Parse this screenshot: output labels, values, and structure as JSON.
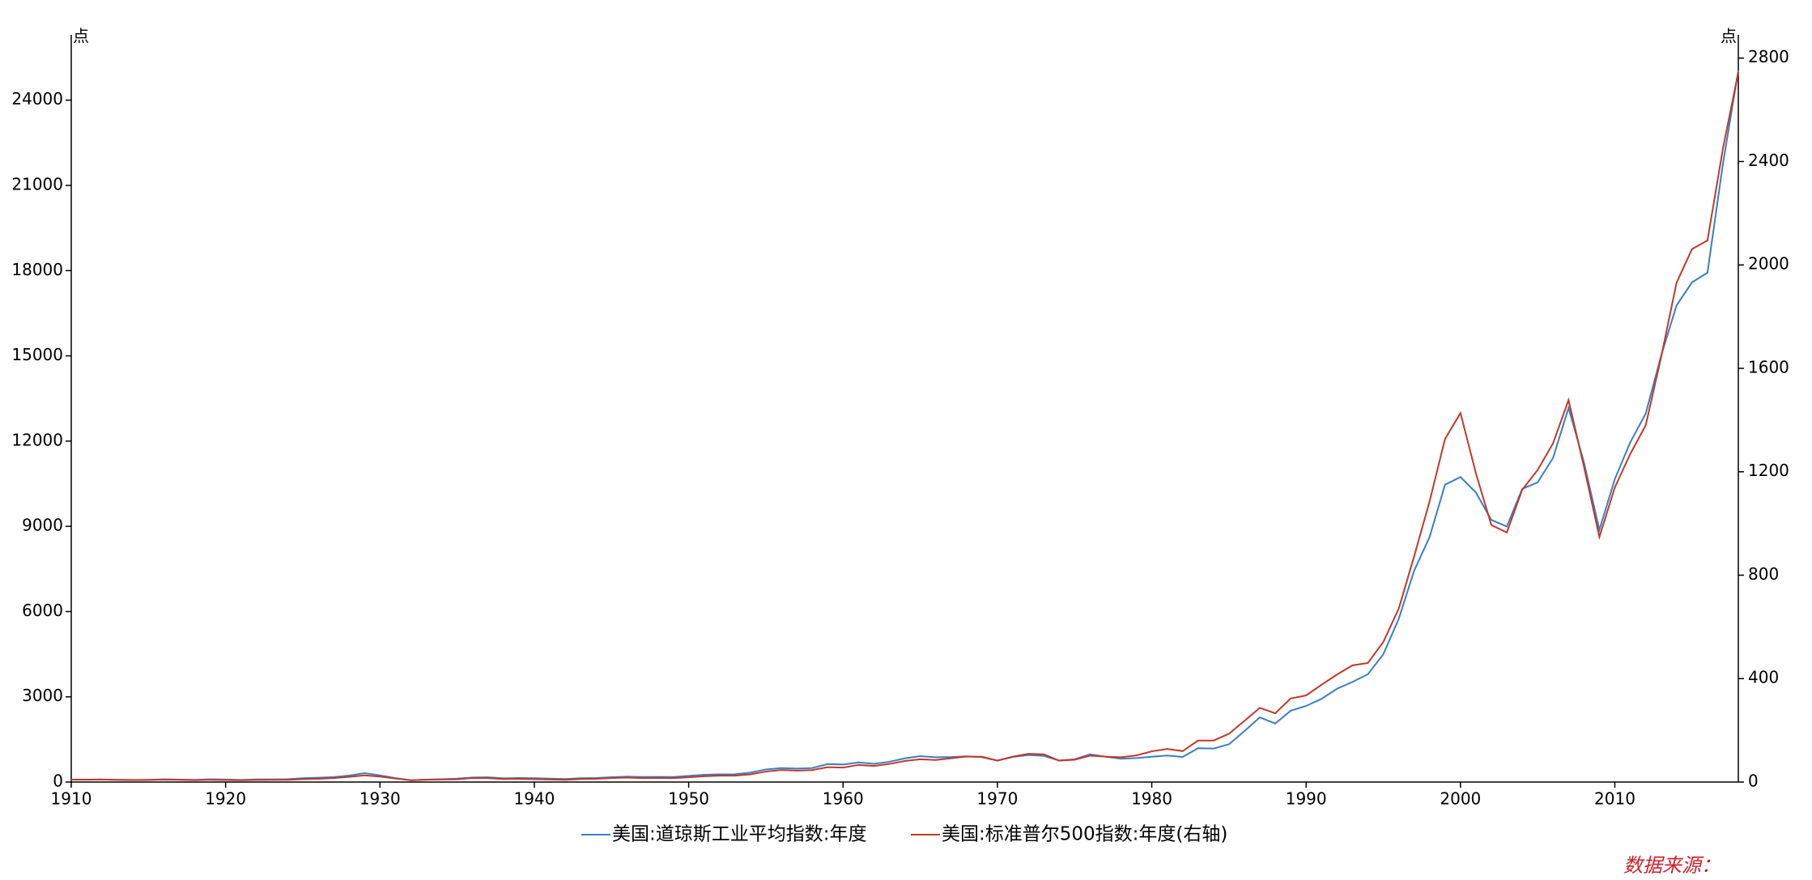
{
  "chart_data": {
    "type": "line",
    "y_unit": "点",
    "y2_unit": "点",
    "x": [
      1910,
      1911,
      1912,
      1913,
      1914,
      1915,
      1916,
      1917,
      1918,
      1919,
      1920,
      1921,
      1922,
      1923,
      1924,
      1925,
      1926,
      1927,
      1928,
      1929,
      1930,
      1931,
      1932,
      1933,
      1934,
      1935,
      1936,
      1937,
      1938,
      1939,
      1940,
      1941,
      1942,
      1943,
      1944,
      1945,
      1946,
      1947,
      1948,
      1949,
      1950,
      1951,
      1952,
      1953,
      1954,
      1955,
      1956,
      1957,
      1958,
      1959,
      1960,
      1961,
      1962,
      1963,
      1964,
      1965,
      1966,
      1967,
      1968,
      1969,
      1970,
      1971,
      1972,
      1973,
      1974,
      1975,
      1976,
      1977,
      1978,
      1979,
      1980,
      1981,
      1982,
      1983,
      1984,
      1985,
      1986,
      1987,
      1988,
      1989,
      1990,
      1991,
      1992,
      1993,
      1994,
      1995,
      1996,
      1997,
      1998,
      1999,
      2000,
      2001,
      2002,
      2003,
      2004,
      2005,
      2006,
      2007,
      2008,
      2009,
      2010,
      2011,
      2012,
      2013,
      2014,
      2015,
      2016,
      2017,
      2018
    ],
    "series": [
      {
        "name": "美国:道琼斯工业平均指数:年度",
        "color": "#3a7fc1",
        "values": [
          85,
          83,
          88,
          80,
          76,
          80,
          95,
          85,
          80,
          97,
          88,
          74,
          92,
          94,
          99,
          134,
          153,
          176,
          227,
          312,
          237,
          139,
          64,
          84,
          98,
          120,
          161,
          166,
          133,
          142,
          134,
          121,
          107,
          136,
          143,
          170,
          191,
          177,
          180,
          179,
          216,
          257,
          270,
          275,
          333,
          443,
          493,
          475,
          491,
          632,
          618,
          691,
          640,
          714,
          834,
          910,
          873,
          879,
          906,
          877,
          753,
          884,
          950,
          923,
          759,
          802,
          974,
          894,
          820,
          844,
          891,
          932,
          884,
          1190,
          1178,
          1328,
          1793,
          2276,
          2061,
          2509,
          2679,
          2929,
          3284,
          3522,
          3794,
          4494,
          5743,
          7441,
          8626,
          10465,
          10735,
          10189,
          9226,
          8994,
          10317,
          10548,
          11409,
          13170,
          11253,
          8877,
          10663,
          11958,
          12967,
          15010,
          16778,
          17587,
          17927,
          21750,
          25046
        ]
      },
      {
        "name": "美国:标准普尔500指数:年度(右轴)",
        "color": "#c0392b",
        "axis": "y2",
        "values": [
          9.5,
          9.3,
          9.6,
          8.5,
          8.0,
          8.3,
          9.5,
          8.5,
          7.6,
          8.8,
          8.0,
          6.9,
          8.4,
          8.6,
          8.8,
          11.1,
          12.6,
          15.3,
          19.9,
          26.0,
          21.0,
          13.7,
          6.9,
          9.0,
          9.8,
          10.6,
          15.5,
          15.4,
          11.5,
          12.1,
          11.0,
          9.8,
          8.7,
          11.5,
          12.5,
          15.2,
          17.1,
          15.2,
          15.5,
          15.2,
          18.4,
          22.3,
          24.5,
          24.7,
          29.7,
          40.5,
          46.6,
          44.4,
          46.2,
          57.4,
          55.9,
          66.3,
          62.4,
          69.9,
          81.4,
          88.2,
          85.3,
          91.9,
          98.7,
          97.8,
          83.2,
          98.3,
          109.2,
          107.4,
          82.9,
          86.2,
          102.0,
          98.2,
          96.0,
          103.0,
          118.8,
          128.1,
          119.7,
          160.4,
          160.5,
          186.8,
          236.3,
          287.0,
          265.8,
          323.1,
          335.0,
          376.2,
          415.7,
          451.4,
          460.4,
          541.7,
          670.5,
          873.4,
          1085.5,
          1327.3,
          1427.2,
          1194.2,
          993.9,
          965.2,
          1130.7,
          1207.2,
          1310.5,
          1477.2,
          1220.0,
          948.1,
          1139.3,
          1268.9,
          1379.6,
          1643.8,
          1931.4,
          2061.1,
          2094.7,
          2449.1,
          2745.5
        ]
      }
    ],
    "xlim": [
      1910,
      2018
    ],
    "xticks": [
      1910,
      1920,
      1930,
      1940,
      1950,
      1960,
      1970,
      1980,
      1990,
      2000,
      2010
    ],
    "ylim": [
      0,
      26300
    ],
    "yticks": [
      0,
      3000,
      6000,
      9000,
      12000,
      15000,
      18000,
      21000,
      24000
    ],
    "y2lim": [
      0,
      2890
    ],
    "y2ticks": [
      0,
      400,
      800,
      1200,
      1600,
      2000,
      2400,
      2800
    ],
    "source": "数据来源："
  }
}
